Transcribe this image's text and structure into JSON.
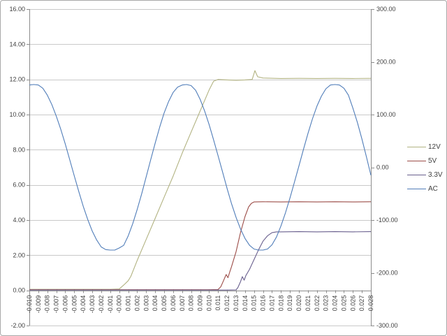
{
  "chart_data": {
    "type": "line",
    "title": "",
    "grid": "horizontal",
    "legend_position": "right",
    "background": "#ffffff",
    "x_axis": {
      "min": -0.01,
      "max": 0.028,
      "label_rotation": 90,
      "labels": [
        "-0.010",
        "-0.009",
        "-0.008",
        "-0.007",
        "-0.006",
        "-0.005",
        "-0.004",
        "-0.003",
        "-0.002",
        "-0.001",
        "-0.000",
        "0.001",
        "0.002",
        "0.003",
        "0.004",
        "0.005",
        "0.006",
        "0.007",
        "0.008",
        "0.009",
        "0.010",
        "0.011",
        "0.012",
        "0.013",
        "0.014",
        "0.015",
        "0.016",
        "0.017",
        "0.018",
        "0.019",
        "0.020",
        "0.021",
        "0.022",
        "0.023",
        "0.024",
        "0.025",
        "0.026",
        "0.027",
        "0.028"
      ]
    },
    "y_axis_left": {
      "min": -2,
      "max": 16,
      "step": 2,
      "labels": [
        "16.00",
        "14.00",
        "12.00",
        "10.00",
        "8.00",
        "6.00",
        "4.00",
        "2.00",
        "0.00",
        "-2.00"
      ]
    },
    "y_axis_right": {
      "min": -300,
      "max": 300,
      "step": 100,
      "labels": [
        "300.00",
        "200.00",
        "100.00",
        "0.00",
        "-100.00",
        "-200.00",
        "-300.00"
      ]
    },
    "series": [
      {
        "name": "12V",
        "color": "#b2b382",
        "axis": "left",
        "points": [
          [
            -0.01,
            0.06
          ],
          [
            -0.008,
            0.06
          ],
          [
            -0.006,
            0.06
          ],
          [
            -0.004,
            0.06
          ],
          [
            -0.002,
            0.06
          ],
          [
            -0.001,
            0.06
          ],
          [
            0.0,
            0.08
          ],
          [
            0.0005,
            0.3
          ],
          [
            0.001,
            0.55
          ],
          [
            0.0013,
            0.8
          ],
          [
            0.002,
            1.7
          ],
          [
            0.003,
            2.9
          ],
          [
            0.004,
            4.1
          ],
          [
            0.005,
            5.3
          ],
          [
            0.006,
            6.5
          ],
          [
            0.007,
            7.8
          ],
          [
            0.008,
            9.0
          ],
          [
            0.009,
            10.2
          ],
          [
            0.01,
            11.4
          ],
          [
            0.0105,
            11.9
          ],
          [
            0.011,
            12.0
          ],
          [
            0.012,
            11.97
          ],
          [
            0.013,
            11.95
          ],
          [
            0.014,
            11.97
          ],
          [
            0.0148,
            12.0
          ],
          [
            0.0151,
            12.5
          ],
          [
            0.0154,
            12.15
          ],
          [
            0.016,
            12.08
          ],
          [
            0.018,
            12.05
          ],
          [
            0.02,
            12.06
          ],
          [
            0.022,
            12.05
          ],
          [
            0.024,
            12.06
          ],
          [
            0.026,
            12.05
          ],
          [
            0.028,
            12.06
          ]
        ]
      },
      {
        "name": "5V",
        "color": "#9c4d48",
        "axis": "left",
        "points": [
          [
            -0.01,
            0.04
          ],
          [
            -0.008,
            0.04
          ],
          [
            -0.006,
            0.04
          ],
          [
            -0.004,
            0.04
          ],
          [
            -0.002,
            0.04
          ],
          [
            0.0,
            0.04
          ],
          [
            0.002,
            0.04
          ],
          [
            0.004,
            0.04
          ],
          [
            0.006,
            0.04
          ],
          [
            0.008,
            0.04
          ],
          [
            0.01,
            0.04
          ],
          [
            0.011,
            0.05
          ],
          [
            0.0113,
            0.2
          ],
          [
            0.0116,
            0.55
          ],
          [
            0.0119,
            0.9
          ],
          [
            0.0121,
            0.72
          ],
          [
            0.0123,
            1.05
          ],
          [
            0.0125,
            1.35
          ],
          [
            0.013,
            2.2
          ],
          [
            0.0135,
            3.3
          ],
          [
            0.014,
            4.2
          ],
          [
            0.0144,
            4.75
          ],
          [
            0.0147,
            4.95
          ],
          [
            0.015,
            5.03
          ],
          [
            0.016,
            5.04
          ],
          [
            0.018,
            5.03
          ],
          [
            0.02,
            5.04
          ],
          [
            0.022,
            5.03
          ],
          [
            0.024,
            5.04
          ],
          [
            0.026,
            5.03
          ],
          [
            0.028,
            5.04
          ]
        ]
      },
      {
        "name": "3.3V",
        "color": "#695f8e",
        "axis": "left",
        "points": [
          [
            -0.01,
            0.02
          ],
          [
            -0.008,
            0.02
          ],
          [
            -0.006,
            0.02
          ],
          [
            -0.004,
            0.02
          ],
          [
            -0.002,
            0.02
          ],
          [
            0.0,
            0.02
          ],
          [
            0.002,
            0.02
          ],
          [
            0.004,
            0.02
          ],
          [
            0.006,
            0.02
          ],
          [
            0.008,
            0.02
          ],
          [
            0.01,
            0.02
          ],
          [
            0.012,
            0.02
          ],
          [
            0.013,
            0.03
          ],
          [
            0.0132,
            0.15
          ],
          [
            0.0135,
            0.5
          ],
          [
            0.0137,
            0.78
          ],
          [
            0.0139,
            0.58
          ],
          [
            0.0141,
            0.85
          ],
          [
            0.0145,
            1.2
          ],
          [
            0.015,
            1.75
          ],
          [
            0.0155,
            2.3
          ],
          [
            0.016,
            2.8
          ],
          [
            0.0165,
            3.1
          ],
          [
            0.017,
            3.28
          ],
          [
            0.0175,
            3.33
          ],
          [
            0.018,
            3.33
          ],
          [
            0.02,
            3.34
          ],
          [
            0.022,
            3.33
          ],
          [
            0.024,
            3.34
          ],
          [
            0.026,
            3.33
          ],
          [
            0.028,
            3.34
          ]
        ]
      },
      {
        "name": "AC",
        "color": "#507db9",
        "axis": "right",
        "points": [
          [
            -0.01,
            156
          ],
          [
            -0.0095,
            157
          ],
          [
            -0.009,
            156
          ],
          [
            -0.0085,
            150
          ],
          [
            -0.008,
            137
          ],
          [
            -0.0075,
            119
          ],
          [
            -0.007,
            97
          ],
          [
            -0.0065,
            72
          ],
          [
            -0.006,
            44
          ],
          [
            -0.0055,
            14
          ],
          [
            -0.005,
            -16
          ],
          [
            -0.0045,
            -46
          ],
          [
            -0.004,
            -74
          ],
          [
            -0.0035,
            -99
          ],
          [
            -0.003,
            -121
          ],
          [
            -0.0025,
            -138
          ],
          [
            -0.002,
            -151
          ],
          [
            -0.0015,
            -156
          ],
          [
            -0.001,
            -157
          ],
          [
            -0.0005,
            -157
          ],
          [
            0.0,
            -153
          ],
          [
            0.0005,
            -148
          ],
          [
            0.001,
            -130
          ],
          [
            0.0015,
            -107
          ],
          [
            0.002,
            -80
          ],
          [
            0.0025,
            -50
          ],
          [
            0.003,
            -18
          ],
          [
            0.0035,
            14
          ],
          [
            0.004,
            46
          ],
          [
            0.0045,
            76
          ],
          [
            0.005,
            103
          ],
          [
            0.0055,
            125
          ],
          [
            0.006,
            142
          ],
          [
            0.0065,
            152
          ],
          [
            0.007,
            156
          ],
          [
            0.0075,
            157
          ],
          [
            0.008,
            155
          ],
          [
            0.0085,
            146
          ],
          [
            0.009,
            129
          ],
          [
            0.0095,
            107
          ],
          [
            0.01,
            81
          ],
          [
            0.0105,
            52
          ],
          [
            0.011,
            22
          ],
          [
            0.0115,
            -9
          ],
          [
            0.012,
            -40
          ],
          [
            0.0125,
            -69
          ],
          [
            0.013,
            -95
          ],
          [
            0.0135,
            -117
          ],
          [
            0.014,
            -135
          ],
          [
            0.0145,
            -148
          ],
          [
            0.015,
            -155
          ],
          [
            0.0155,
            -157
          ],
          [
            0.016,
            -157
          ],
          [
            0.0165,
            -155
          ],
          [
            0.017,
            -147
          ],
          [
            0.0175,
            -132
          ],
          [
            0.018,
            -111
          ],
          [
            0.0185,
            -86
          ],
          [
            0.019,
            -58
          ],
          [
            0.0195,
            -28
          ],
          [
            0.02,
            3
          ],
          [
            0.0205,
            34
          ],
          [
            0.021,
            64
          ],
          [
            0.0215,
            92
          ],
          [
            0.022,
            116
          ],
          [
            0.0225,
            135
          ],
          [
            0.023,
            149
          ],
          [
            0.0235,
            156
          ],
          [
            0.024,
            157
          ],
          [
            0.0245,
            156
          ],
          [
            0.025,
            150
          ],
          [
            0.0255,
            137
          ],
          [
            0.026,
            112
          ],
          [
            0.0265,
            85
          ],
          [
            0.027,
            54
          ],
          [
            0.0275,
            20
          ],
          [
            0.028,
            -15
          ]
        ]
      }
    ]
  }
}
